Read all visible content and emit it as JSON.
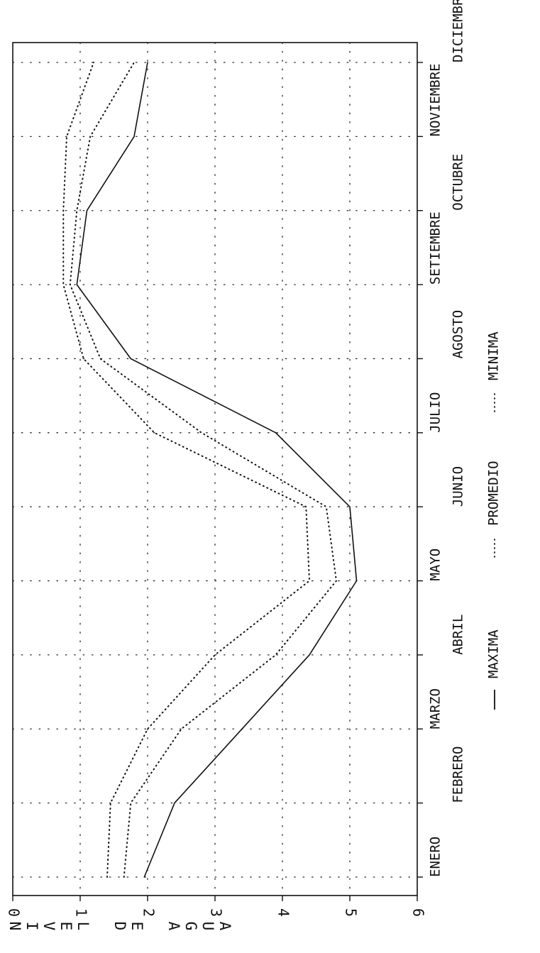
{
  "chart_data": {
    "type": "line",
    "title": "",
    "xlabel": "",
    "ylabel": "NIVEL DE AGUA",
    "categories": [
      "ENERO",
      "FEBRERO",
      "MARZO",
      "ABRIL",
      "MAYO",
      "JUNIO",
      "JULIO",
      "AGOSTO",
      "SETIEMBRE",
      "OCTUBRE",
      "NOVIEMBRE",
      "DICIEMBRE"
    ],
    "yticks": [
      "0",
      "1",
      "2",
      "3",
      "4",
      "5",
      "6"
    ],
    "ylim": [
      0,
      6
    ],
    "grid": true,
    "legend_position": "bottom",
    "series": [
      {
        "name": "MAXIMA",
        "style": "solid",
        "values": [
          1.95,
          2.4,
          3.4,
          4.4,
          5.1,
          5.0,
          3.9,
          1.75,
          0.95,
          1.1,
          1.8,
          2.0
        ]
      },
      {
        "name": "PROMEDIO",
        "style": "dotted",
        "values": [
          1.65,
          1.75,
          2.5,
          3.9,
          4.8,
          4.65,
          2.8,
          1.3,
          0.85,
          0.95,
          1.15,
          1.8
        ]
      },
      {
        "name": "MINIMA",
        "style": "dotted",
        "values": [
          1.4,
          1.45,
          2.0,
          3.0,
          4.4,
          4.35,
          2.1,
          1.05,
          0.75,
          0.75,
          0.8,
          1.2
        ]
      }
    ]
  }
}
